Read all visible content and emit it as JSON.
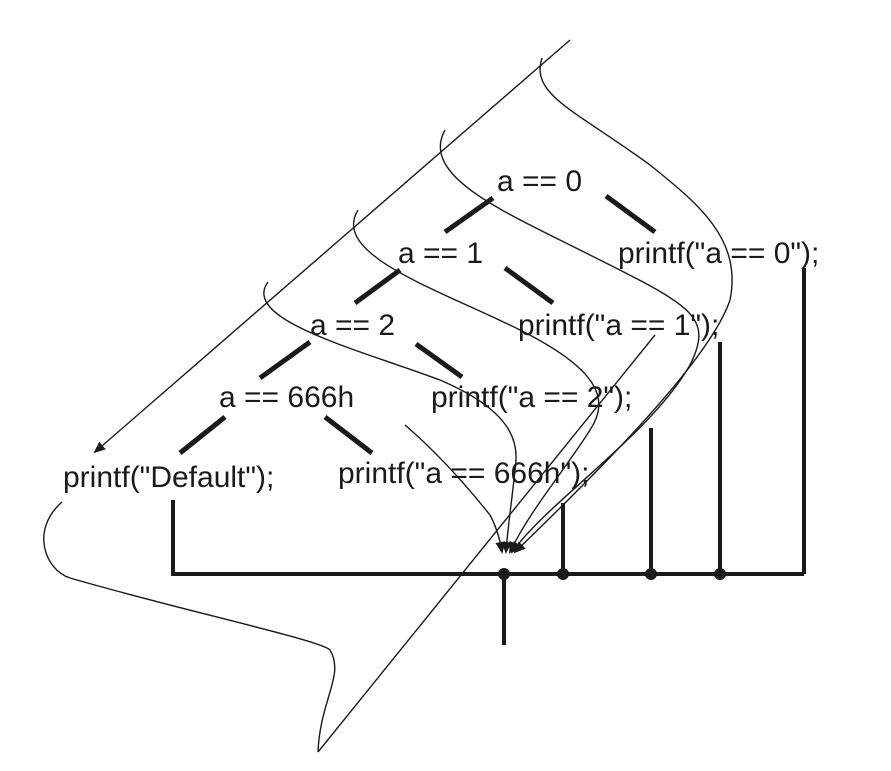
{
  "nodes": {
    "cond_a0": "a == 0",
    "cond_a1": "a == 1",
    "cond_a2": "a == 2",
    "cond_a666h": "a == 666h",
    "print_default": "printf(\"Default\");",
    "print_a666h": "printf(\"a == 666h\");",
    "print_a2": "printf(\"a == 2\");",
    "print_a1": "printf(\"a == 1\");",
    "print_a0": "printf(\"a == 0\");"
  },
  "colors": {
    "ink": "#1a1a1a",
    "background": "#ffffff"
  }
}
